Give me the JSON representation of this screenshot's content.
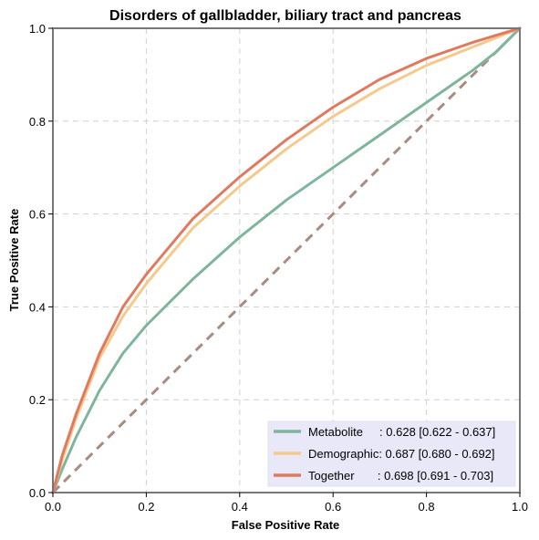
{
  "chart_data": {
    "type": "line",
    "title": "Disorders of gallbladder, biliary tract and pancreas",
    "xlabel": "False Positive Rate",
    "ylabel": "True Positive Rate",
    "xlim": [
      0,
      1
    ],
    "ylim": [
      0,
      1
    ],
    "x_ticks": [
      "0.0",
      "0.2",
      "0.4",
      "0.6",
      "0.8",
      "1.0"
    ],
    "y_ticks": [
      "0.0",
      "0.2",
      "0.4",
      "0.6",
      "0.8",
      "1.0"
    ],
    "grid": true,
    "legend_position": "bottom-right",
    "series": [
      {
        "name": "Metabolite",
        "legend_label": "Metabolite     : 0.628 [0.622 - 0.637]",
        "color": "#7fb59b",
        "x": [
          0,
          0.02,
          0.05,
          0.1,
          0.15,
          0.2,
          0.25,
          0.3,
          0.4,
          0.5,
          0.6,
          0.7,
          0.8,
          0.9,
          0.95,
          1.0
        ],
        "y": [
          0,
          0.05,
          0.12,
          0.22,
          0.3,
          0.36,
          0.41,
          0.46,
          0.55,
          0.63,
          0.7,
          0.77,
          0.84,
          0.91,
          0.95,
          1.0
        ]
      },
      {
        "name": "Demographic",
        "legend_label": "Demographic: 0.687 [0.680 - 0.692]",
        "color": "#f5c98c",
        "x": [
          0,
          0.02,
          0.05,
          0.1,
          0.15,
          0.2,
          0.25,
          0.3,
          0.4,
          0.5,
          0.6,
          0.7,
          0.8,
          0.9,
          0.95,
          1.0
        ],
        "y": [
          0,
          0.07,
          0.16,
          0.29,
          0.38,
          0.45,
          0.51,
          0.57,
          0.66,
          0.74,
          0.81,
          0.87,
          0.92,
          0.96,
          0.98,
          1.0
        ]
      },
      {
        "name": "Together",
        "legend_label": "Together       : 0.698 [0.691 - 0.703]",
        "color": "#e07a5f",
        "x": [
          0,
          0.02,
          0.05,
          0.1,
          0.15,
          0.2,
          0.25,
          0.3,
          0.4,
          0.5,
          0.6,
          0.7,
          0.8,
          0.9,
          0.95,
          1.0
        ],
        "y": [
          0,
          0.08,
          0.17,
          0.3,
          0.4,
          0.47,
          0.53,
          0.59,
          0.68,
          0.76,
          0.83,
          0.89,
          0.935,
          0.97,
          0.985,
          1.0
        ]
      },
      {
        "name": "",
        "color": "#a98b7f",
        "dashed": true,
        "x": [
          0,
          1
        ],
        "y": [
          0,
          1
        ]
      }
    ]
  }
}
